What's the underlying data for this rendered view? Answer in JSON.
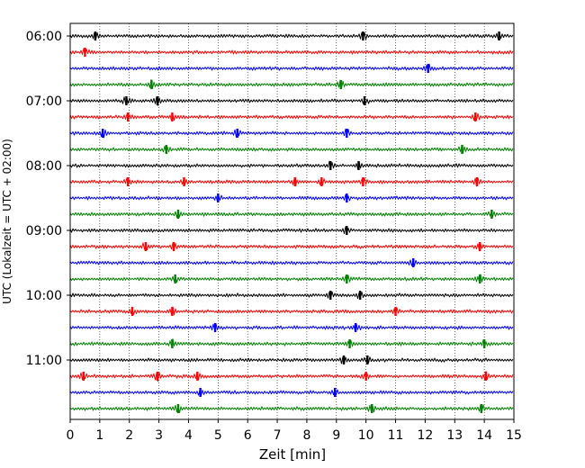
{
  "chart_data": {
    "type": "line",
    "chart_kind": "helicorder",
    "xlabel": "Zeit  [min]",
    "ylabel": "UTC (Lokalzeit = UTC + 02:00)",
    "xlim": [
      0,
      15
    ],
    "x_ticks": [
      "0",
      "1",
      "2",
      "3",
      "4",
      "5",
      "6",
      "7",
      "8",
      "9",
      "10",
      "11",
      "12",
      "13",
      "14",
      "15"
    ],
    "grid": "vertical dotted",
    "trace_interval_min": 15,
    "trace_count": 24,
    "hour_labels": [
      "06:00",
      "07:00",
      "08:00",
      "09:00",
      "10:00",
      "11:00"
    ],
    "trace_colors": [
      "#000000",
      "#ff0000",
      "#0000ff",
      "#008000"
    ],
    "traces": [
      {
        "start": "06:00",
        "color": "#000000",
        "events": [
          0.85,
          9.9,
          14.5
        ]
      },
      {
        "start": "06:15",
        "color": "#ff0000",
        "events": [
          0.5
        ]
      },
      {
        "start": "06:30",
        "color": "#0000ff",
        "events": [
          12.1
        ]
      },
      {
        "start": "06:45",
        "color": "#008000",
        "events": [
          2.75,
          9.15
        ]
      },
      {
        "start": "07:00",
        "color": "#000000",
        "events": [
          1.9,
          2.95,
          9.95
        ]
      },
      {
        "start": "07:15",
        "color": "#ff0000",
        "events": [
          1.95,
          3.45,
          13.7
        ]
      },
      {
        "start": "07:30",
        "color": "#0000ff",
        "events": [
          1.1,
          5.65,
          9.35
        ]
      },
      {
        "start": "07:45",
        "color": "#008000",
        "events": [
          3.25,
          13.25
        ]
      },
      {
        "start": "08:00",
        "color": "#000000",
        "events": [
          8.8,
          9.75
        ]
      },
      {
        "start": "08:15",
        "color": "#ff0000",
        "events": [
          1.95,
          3.85,
          7.6,
          8.5,
          9.9,
          13.75
        ]
      },
      {
        "start": "08:30",
        "color": "#0000ff",
        "events": [
          5.0,
          9.35
        ]
      },
      {
        "start": "08:45",
        "color": "#008000",
        "events": [
          3.65,
          14.25
        ]
      },
      {
        "start": "09:00",
        "color": "#000000",
        "events": [
          9.35
        ]
      },
      {
        "start": "09:15",
        "color": "#ff0000",
        "events": [
          2.55,
          3.5,
          13.85
        ]
      },
      {
        "start": "09:30",
        "color": "#0000ff",
        "events": [
          11.6
        ]
      },
      {
        "start": "09:45",
        "color": "#008000",
        "events": [
          3.55,
          9.35,
          13.85
        ]
      },
      {
        "start": "10:00",
        "color": "#000000",
        "events": [
          8.8,
          9.8
        ]
      },
      {
        "start": "10:15",
        "color": "#ff0000",
        "events": [
          2.1,
          3.45,
          11.0
        ]
      },
      {
        "start": "10:30",
        "color": "#0000ff",
        "events": [
          4.9,
          9.65
        ]
      },
      {
        "start": "10:45",
        "color": "#008000",
        "events": [
          3.45,
          9.45,
          14.0
        ]
      },
      {
        "start": "11:00",
        "color": "#000000",
        "events": [
          9.25,
          10.05
        ]
      },
      {
        "start": "11:15",
        "color": "#ff0000",
        "events": [
          0.45,
          2.95,
          4.3,
          10.0,
          14.05
        ]
      },
      {
        "start": "11:30",
        "color": "#0000ff",
        "events": [
          4.4,
          8.95
        ]
      },
      {
        "start": "11:45",
        "color": "#008000",
        "events": [
          3.65,
          10.2,
          13.9
        ]
      }
    ]
  }
}
